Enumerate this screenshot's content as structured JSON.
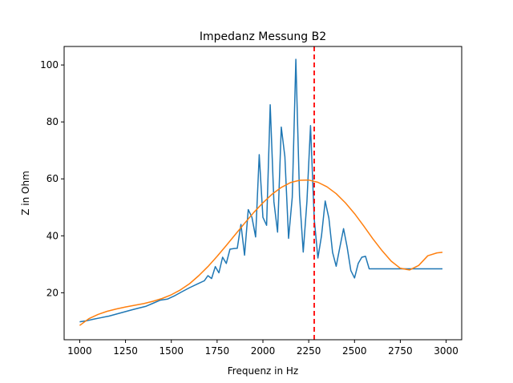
{
  "chart_data": {
    "type": "line",
    "title": "Impedanz Messung B2",
    "xlabel": "Frequenz in Hz",
    "ylabel": "Z in Ohm",
    "xlim": [
      915,
      3085
    ],
    "ylim": [
      3.5,
      106.5
    ],
    "xticks": [
      1000,
      1250,
      1500,
      1750,
      2000,
      2250,
      2500,
      2750,
      3000
    ],
    "yticks": [
      20,
      40,
      60,
      80,
      100
    ],
    "grid": false,
    "legend": "none",
    "series": [
      {
        "color": "#1f77b4",
        "x": [
          1000,
          1040,
          1080,
          1120,
          1160,
          1200,
          1240,
          1280,
          1320,
          1360,
          1400,
          1440,
          1480,
          1520,
          1560,
          1600,
          1640,
          1680,
          1700,
          1720,
          1740,
          1760,
          1780,
          1800,
          1820,
          1840,
          1860,
          1880,
          1900,
          1920,
          1940,
          1960,
          1980,
          2000,
          2020,
          2040,
          2060,
          2080,
          2100,
          2120,
          2140,
          2160,
          2180,
          2200,
          2220,
          2240,
          2260,
          2280,
          2300,
          2320,
          2340,
          2360,
          2380,
          2400,
          2420,
          2440,
          2460,
          2480,
          2500,
          2520,
          2540,
          2560,
          2580,
          2600,
          2620,
          2640,
          2660,
          2680,
          2700,
          2720,
          2740,
          2760,
          2780,
          2800,
          2820,
          2840,
          2860,
          2880,
          2900,
          2920,
          2940,
          2960,
          2980
        ],
        "y": [
          9.8,
          10.2,
          10.8,
          11.3,
          11.8,
          12.5,
          13.2,
          13.9,
          14.6,
          15.2,
          16.3,
          17.4,
          17.8,
          19.0,
          20.4,
          21.8,
          23.0,
          24.2,
          26.0,
          25.0,
          29.2,
          27.0,
          32.5,
          30.3,
          35.3,
          35.5,
          35.6,
          44.0,
          33.2,
          49.2,
          46.5,
          39.6,
          68.5,
          46.5,
          43.7,
          86.0,
          52.0,
          41.3,
          78.2,
          67.8,
          39.1,
          53.5,
          102.0,
          54.0,
          34.3,
          52.0,
          78.7,
          46.0,
          32.2,
          40.0,
          52.2,
          46.2,
          34.2,
          29.3,
          36.0,
          42.5,
          36.0,
          27.8,
          25.2,
          30.3,
          32.5,
          32.8,
          28.4,
          28.4,
          28.4,
          28.4,
          28.4,
          28.4,
          28.4,
          28.4,
          28.4,
          28.4,
          28.4,
          28.4,
          28.4,
          28.4,
          28.4,
          28.4,
          28.4,
          28.4,
          28.4,
          28.4,
          28.4
        ]
      },
      {
        "color": "#ff7f0e",
        "x": [
          1000,
          1050,
          1100,
          1150,
          1200,
          1250,
          1300,
          1350,
          1400,
          1450,
          1500,
          1550,
          1600,
          1650,
          1700,
          1750,
          1800,
          1850,
          1900,
          1950,
          2000,
          2050,
          2100,
          2150,
          2200,
          2250,
          2300,
          2350,
          2400,
          2450,
          2500,
          2550,
          2600,
          2650,
          2700,
          2750,
          2800,
          2850,
          2900,
          2950,
          2980
        ],
        "y": [
          8.5,
          10.9,
          12.4,
          13.5,
          14.3,
          15.0,
          15.6,
          16.2,
          17.0,
          18.0,
          19.3,
          21.0,
          23.2,
          26.0,
          29.2,
          32.8,
          36.6,
          40.5,
          44.4,
          48.2,
          51.6,
          54.6,
          57.0,
          58.7,
          59.5,
          59.6,
          58.8,
          57.2,
          54.8,
          51.6,
          47.8,
          43.5,
          39.0,
          34.8,
          31.1,
          28.6,
          28.0,
          29.6,
          33.0,
          34.0,
          34.2
        ]
      }
    ],
    "annotations": [
      {
        "type": "vline",
        "x": 2280,
        "color": "#ff0000",
        "style": "dashed"
      }
    ]
  }
}
